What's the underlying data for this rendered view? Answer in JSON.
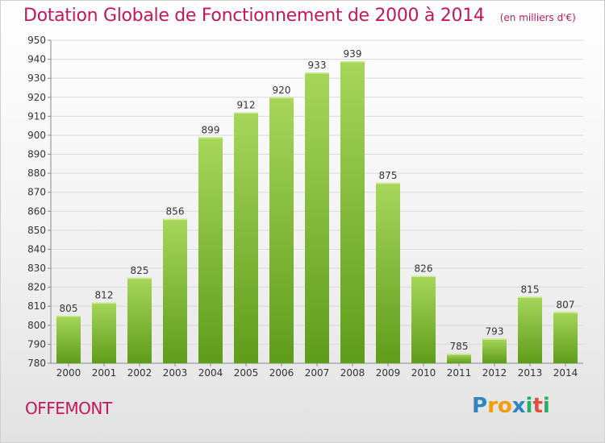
{
  "title": "Dotation Globale de Fonctionnement de 2000 à 2014",
  "unit": "(en milliers d'€)",
  "commune": "OFFEMONT",
  "logo_text": "Proxiti",
  "colors": {
    "title": "#c2185b",
    "bar_light": "#a6d65a",
    "bar_dark": "#5f9c1a",
    "logo": [
      "#2e86c1",
      "#f39c12",
      "#f39c12",
      "#2e86c1",
      "#27ae60",
      "#e74c3c",
      "#27ae60"
    ]
  },
  "chart_data": {
    "type": "bar",
    "title": "Dotation Globale de Fonctionnement de 2000 à 2014",
    "subtitle": "(en milliers d'€)",
    "categories": [
      "2000",
      "2001",
      "2002",
      "2003",
      "2004",
      "2005",
      "2006",
      "2007",
      "2008",
      "2009",
      "2010",
      "2011",
      "2012",
      "2013",
      "2014"
    ],
    "values": [
      805,
      812,
      825,
      856,
      899,
      912,
      920,
      933,
      939,
      875,
      826,
      785,
      793,
      815,
      807
    ],
    "ylim": [
      780,
      950
    ],
    "yticks": [
      780,
      790,
      800,
      810,
      820,
      830,
      840,
      850,
      860,
      870,
      880,
      890,
      900,
      910,
      920,
      930,
      940,
      950
    ],
    "grid": true,
    "legend": "none"
  }
}
